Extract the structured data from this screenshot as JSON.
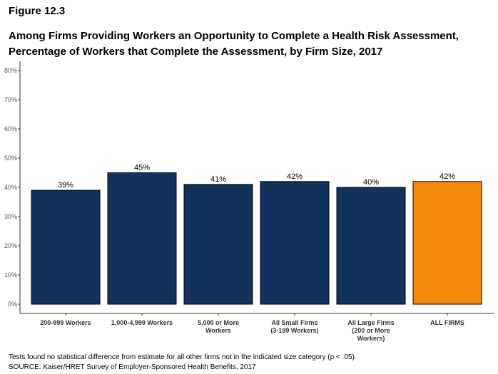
{
  "figure_label": "Figure 12.3",
  "title_lines": [
    "Among Firms Providing Workers an Opportunity to Complete a Health Risk Assessment,",
    "Percentage of Workers that Complete the Assessment, by Firm Size, 2017"
  ],
  "notes": [
    "Tests found no statistical difference from estimate for all other firms not in the indicated size category (p < .05).",
    "SOURCE: Kaiser/HRET Survey of Employer-Sponsored Health Benefits, 2017"
  ],
  "chart_data": {
    "type": "bar",
    "categories": [
      [
        "200-999 Workers"
      ],
      [
        "1,000-4,999 Workers"
      ],
      [
        "5,000 or More",
        "Workers"
      ],
      [
        "All Small Firms",
        "(3-199 Workers)"
      ],
      [
        "All Large Firms",
        "(200 or More",
        "Workers)"
      ],
      [
        "ALL FIRMS"
      ]
    ],
    "values": [
      39,
      45,
      41,
      42,
      40,
      42
    ],
    "data_labels": [
      "39%",
      "45%",
      "41%",
      "42%",
      "40%",
      "42%"
    ],
    "ylim": [
      0,
      80
    ],
    "yticks": [
      0,
      10,
      20,
      30,
      40,
      50,
      60,
      70,
      80
    ],
    "ytick_labels": [
      "0%",
      "10%",
      "20%",
      "30%",
      "40%",
      "50%",
      "60%",
      "70%",
      "80%"
    ],
    "grid": false,
    "bar_colors": [
      "#12335b",
      "#12335b",
      "#12335b",
      "#12335b",
      "#12335b",
      "#f7890c"
    ]
  }
}
